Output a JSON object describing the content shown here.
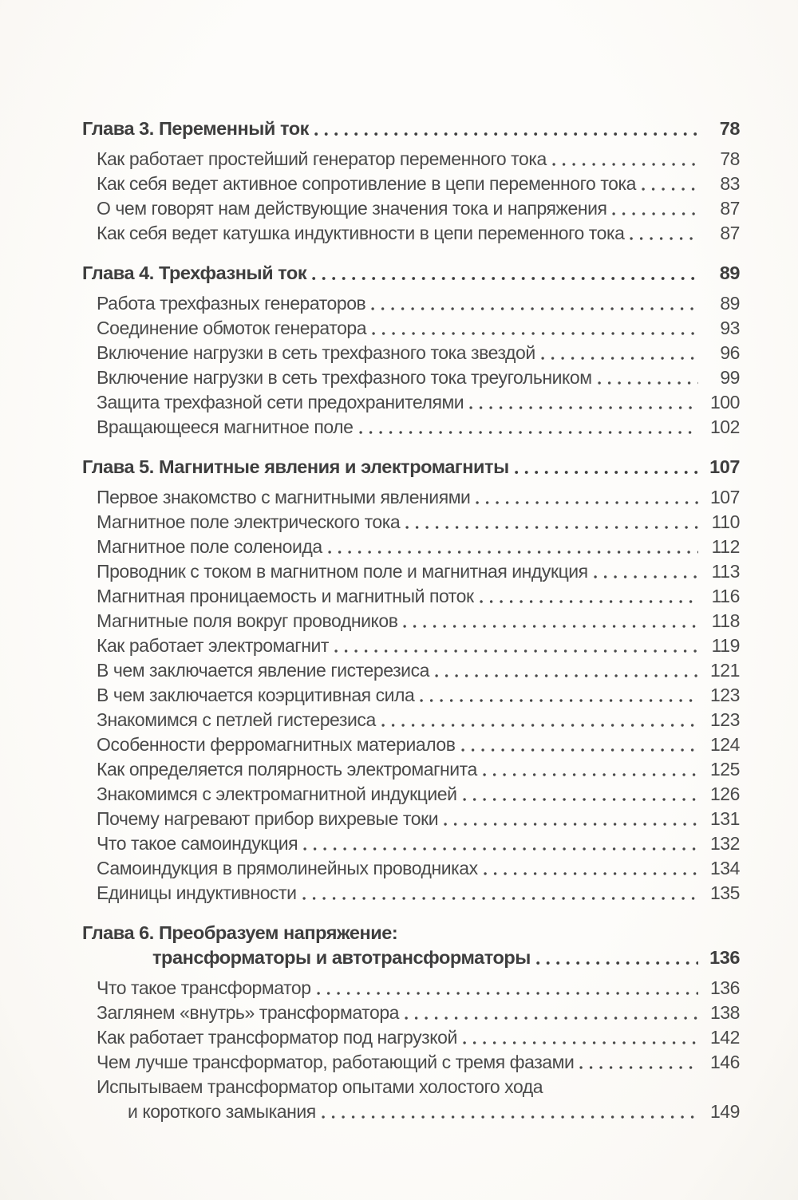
{
  "page_style": {
    "background": "#fdfcfa",
    "text_color": "#4a4a4a",
    "heading_color": "#3e3e3e"
  },
  "toc": {
    "chapters": [
      {
        "title": "Глава 3. Переменный ток",
        "page": "78",
        "items": [
          {
            "title": "Как работает простейший генератор переменного тока",
            "page": "78"
          },
          {
            "title": "Как себя ведет активное сопротивление в цепи переменного тока",
            "page": "83"
          },
          {
            "title": "О чем говорят нам действующие значения тока и напряжения",
            "page": "87"
          },
          {
            "title": "Как себя ведет катушка индуктивности в цепи переменного тока",
            "page": "87"
          }
        ]
      },
      {
        "title": "Глава 4. Трехфазный ток",
        "page": "89",
        "items": [
          {
            "title": "Работа трехфазных генераторов",
            "page": "89"
          },
          {
            "title": "Соединение обмоток генератора",
            "page": "93"
          },
          {
            "title": "Включение нагрузки в сеть трехфазного тока звездой",
            "page": "96"
          },
          {
            "title": "Включение нагрузки в сеть трехфазного тока треугольником",
            "page": "99"
          },
          {
            "title": "Защита трехфазной сети предохранителями",
            "page": "100"
          },
          {
            "title": "Вращающееся магнитное поле",
            "page": "102"
          }
        ]
      },
      {
        "title": "Глава 5. Магнитные явления и электромагниты",
        "page": "107",
        "items": [
          {
            "title": "Первое знакомство с магнитными явлениями",
            "page": "107"
          },
          {
            "title": "Магнитное поле электрического тока",
            "page": "110"
          },
          {
            "title": "Магнитное поле соленоида",
            "page": "112"
          },
          {
            "title": "Проводник с током в магнитном поле и магнитная индукция",
            "page": "113"
          },
          {
            "title": "Магнитная проницаемость и магнитный поток",
            "page": "116"
          },
          {
            "title": "Магнитные поля вокруг проводников",
            "page": "118"
          },
          {
            "title": "Как работает электромагнит",
            "page": "119"
          },
          {
            "title": "В чем заключается явление гистерезиса",
            "page": "121"
          },
          {
            "title": "В чем заключается коэрцитивная сила",
            "page": "123"
          },
          {
            "title": "Знакомимся с петлей гистерезиса",
            "page": "123"
          },
          {
            "title": "Особенности ферромагнитных материалов",
            "page": "124"
          },
          {
            "title": "Как определяется полярность электромагнита",
            "page": "125"
          },
          {
            "title": "Знакомимся с электромагнитной индукцией",
            "page": "126"
          },
          {
            "title": "Почему нагревают прибор вихревые токи",
            "page": "131"
          },
          {
            "title": "Что такое самоиндукция",
            "page": "132"
          },
          {
            "title": "Самоиндукция в прямолинейных проводниках",
            "page": "134"
          },
          {
            "title": "Единицы индуктивности",
            "page": "135"
          }
        ]
      },
      {
        "title_line1": "Глава 6. Преобразуем напряжение:",
        "title_line2": "трансформаторы и автотрансформаторы",
        "page": "136",
        "items": [
          {
            "title": "Что такое трансформатор",
            "page": "136"
          },
          {
            "title": "Заглянем «внутрь» трансформатора",
            "page": "138"
          },
          {
            "title": "Как работает трансформатор под нагрузкой",
            "page": "142"
          },
          {
            "title": "Чем лучше трансформатор, работающий с тремя фазами",
            "page": "146"
          },
          {
            "line1": "Испытываем трансформатор опытами холостого хода",
            "line2": "и короткого замыкания",
            "page": "149"
          }
        ]
      }
    ]
  }
}
